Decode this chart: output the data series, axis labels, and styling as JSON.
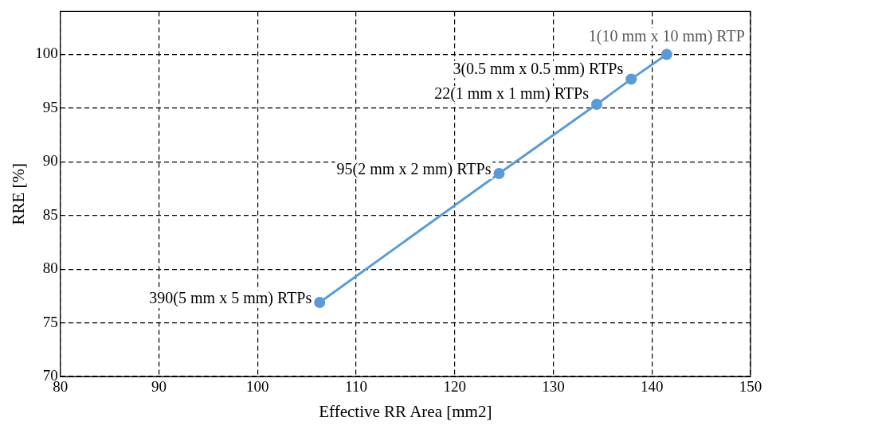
{
  "chart_data": {
    "type": "line",
    "xlabel": "Effective RR Area [mm2]",
    "ylabel": "RRE [%]",
    "x": [
      106.3,
      124.5,
      134.4,
      137.9,
      141.5
    ],
    "series": [
      {
        "color": "#5b9bd5",
        "values": [
          76.9,
          88.9,
          95.35,
          97.7,
          100
        ]
      }
    ],
    "xlim": [
      80,
      150
    ],
    "xticks": [
      80,
      90,
      100,
      110,
      120,
      130,
      140,
      150
    ],
    "ylim": [
      70,
      104
    ],
    "yticks": [
      70,
      75,
      80,
      85,
      90,
      95,
      100
    ],
    "grid": true,
    "legend": false,
    "marker": "circle",
    "line_style": "solid",
    "annotations": [
      {
        "text": "390(5 mm x 5 mm) RTPs",
        "x": 106.3,
        "y": 76.9
      },
      {
        "text": "95(2 mm x 2 mm) RTPs",
        "x": 124.5,
        "y": 88.9
      },
      {
        "text": "22(1 mm x 1 mm) RTPs",
        "x": 134.4,
        "y": 95.35
      },
      {
        "text": "3(0.5 mm x 0.5 mm) RTPs",
        "x": 137.9,
        "y": 97.7
      },
      {
        "text": "1(10 mm x 10 mm) RTP",
        "x": 141.5,
        "y": 100
      }
    ]
  }
}
